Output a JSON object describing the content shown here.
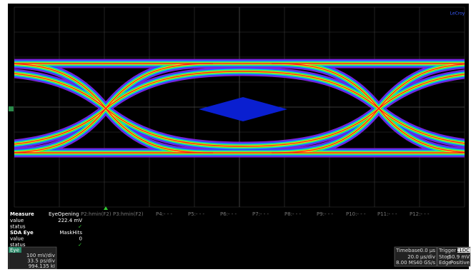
{
  "logo": "LeCroy",
  "measure": {
    "headers": [
      "Measure",
      "EyeOpening",
      "P2:hmin(F2)",
      "P3:hmin(F2)",
      "P4:- - -",
      "P5:- - -",
      "P6:- - -",
      "P7:- - -",
      "P8:- - -",
      "P9:- - -",
      "P10:- - -",
      "P11:- - -",
      "P12:- - -"
    ],
    "rows": [
      [
        "value",
        "222.4 mV"
      ],
      [
        "status",
        "✓"
      ]
    ]
  },
  "sda": {
    "headers": [
      "SDA Eye",
      "MaskHits"
    ],
    "rows": [
      [
        "value",
        "0"
      ],
      [
        "status",
        "✓"
      ]
    ]
  },
  "eye_box": {
    "title": "Eye",
    "lines": [
      "100 mV/div",
      "33.5 ps/div",
      "994.135 kI"
    ]
  },
  "timebase": {
    "label": "Timebase",
    "delay": "0.0 µs",
    "scale": "20.0 µs/div",
    "samples": "8.00 MS",
    "rate": "40 GS/s"
  },
  "trigger": {
    "label": "Trigger",
    "channel": "C1DC",
    "mode": "Stop",
    "level": "-50.9 mV",
    "type": "Edge",
    "slope": "Positive"
  }
}
